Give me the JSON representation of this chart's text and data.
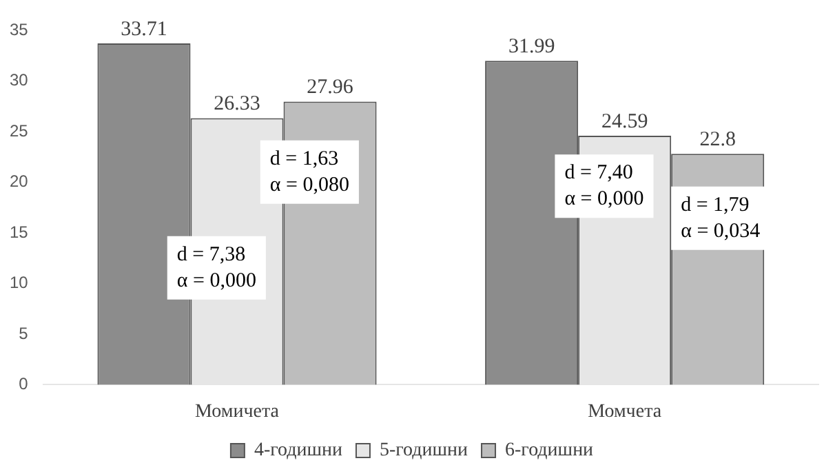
{
  "chart_data": {
    "type": "bar",
    "categories": [
      "Момичета",
      "Момчета"
    ],
    "series": [
      {
        "name": "4-годишни",
        "color": "#8c8c8c",
        "values": [
          33.71,
          31.99
        ]
      },
      {
        "name": "5-годишни",
        "color": "#e6e6e6",
        "values": [
          26.33,
          24.59
        ]
      },
      {
        "name": "6-годишни",
        "color": "#bdbdbd",
        "values": [
          27.96,
          22.8
        ]
      }
    ],
    "ylim": [
      0,
      35
    ],
    "yticks": [
      0,
      5,
      10,
      15,
      20,
      25,
      30,
      35
    ],
    "grid": false,
    "legend": "bottom",
    "data_labels": true,
    "annotations": [
      "d = 7,38\nα = 0,000",
      "d = 1,63\nα = 0,080",
      "d = 7,40\nα = 0,000",
      "d = 1,79\nα = 0,034"
    ]
  }
}
